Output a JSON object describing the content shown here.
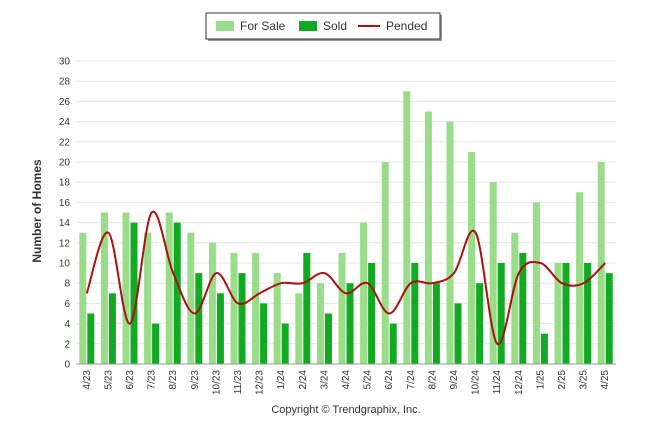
{
  "chart_data": {
    "type": "bar",
    "categories": [
      "4/23",
      "5/23",
      "6/23",
      "7/23",
      "8/23",
      "9/23",
      "10/23",
      "11/23",
      "12/23",
      "1/24",
      "2/24",
      "3/24",
      "4/24",
      "5/24",
      "6/24",
      "7/24",
      "8/24",
      "9/24",
      "10/24",
      "11/24",
      "12/24",
      "1/25",
      "2/25",
      "3/25",
      "4/25"
    ],
    "series": [
      {
        "name": "For Sale",
        "type": "bar",
        "color": "#99dd88",
        "values": [
          13,
          15,
          15,
          13,
          15,
          13,
          12,
          11,
          11,
          9,
          7,
          8,
          11,
          14,
          20,
          27,
          25,
          24,
          21,
          18,
          13,
          16,
          10,
          17,
          20
        ]
      },
      {
        "name": "Sold",
        "type": "bar",
        "color": "#11aa22",
        "values": [
          5,
          7,
          14,
          4,
          14,
          9,
          7,
          9,
          6,
          4,
          11,
          5,
          8,
          10,
          4,
          10,
          8,
          6,
          8,
          10,
          11,
          3,
          10,
          10,
          9
        ]
      },
      {
        "name": "Pended",
        "type": "line",
        "color": "#aa1111",
        "values": [
          7,
          13,
          4,
          15,
          9,
          5,
          9,
          6,
          7,
          8,
          8,
          9,
          7,
          8,
          5,
          8,
          8,
          9,
          13,
          2,
          9,
          10,
          8,
          8,
          10
        ]
      }
    ],
    "ylabel": "Number of Homes",
    "xlabel": "",
    "ylim": [
      0,
      30
    ],
    "ytick_step": 2,
    "grid": true,
    "legend_position": "top-center"
  },
  "footer": {
    "copyright": "Copyright © Trendgraphix, Inc."
  }
}
